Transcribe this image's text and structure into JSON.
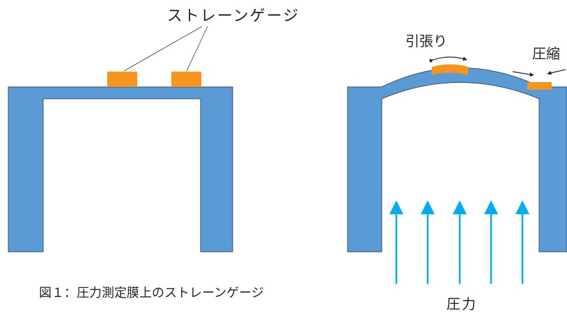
{
  "labels": {
    "strain_gauge": "ストレーンゲージ",
    "tension": "引張り",
    "compression": "圧縮",
    "pressure": "圧力",
    "caption": "図１：圧力測定膜上のストレーンゲージ"
  },
  "colors": {
    "membrane": "#5b9bd5",
    "membrane_outline": "#2f4f6f",
    "gauge": "#f7941d",
    "arrow": "#00aeef",
    "text": "#222222"
  }
}
